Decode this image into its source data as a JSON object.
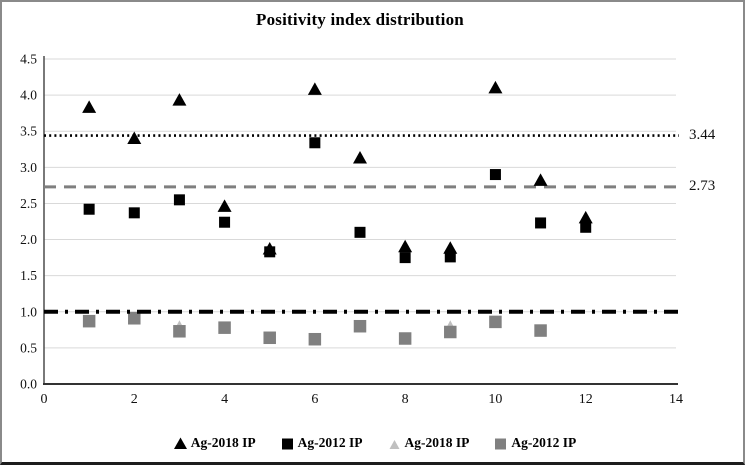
{
  "chart_data": {
    "type": "scatter",
    "title": "Positivity index distribution",
    "x_axis": {
      "min": 0,
      "max": 14,
      "tick_step": 2,
      "ticks": [
        "0",
        "2",
        "4",
        "6",
        "8",
        "10",
        "12",
        "14"
      ]
    },
    "y_axis": {
      "min": 0,
      "max": 4.5,
      "tick_step": 0.5,
      "ticks": [
        "0.0",
        "0.5",
        "1.0",
        "1.5",
        "2.0",
        "2.5",
        "3.0",
        "3.5",
        "4.0",
        "4.5"
      ]
    },
    "grid": "horizontal-only",
    "legend_position": "bottom",
    "colors": {
      "black_series": "#000000",
      "light_gray_series": "#c0c0c0",
      "gray_series": "#808080",
      "gridline": "#d9d9d9",
      "axis": "#4d4d4d",
      "dashed_line": "#7f7f7f"
    },
    "series": [
      {
        "name": "Ag-2018 IP",
        "marker": "triangle",
        "color": "#000000",
        "x": [
          1,
          2,
          3,
          4,
          5,
          6,
          7,
          8,
          9,
          10,
          11,
          12
        ],
        "y": [
          3.83,
          3.4,
          3.93,
          2.46,
          1.87,
          4.08,
          3.13,
          1.9,
          1.88,
          4.1,
          2.82,
          2.3
        ]
      },
      {
        "name": "Ag-2012 IP",
        "marker": "square",
        "color": "#000000",
        "x": [
          1,
          2,
          3,
          4,
          5,
          6,
          7,
          8,
          9,
          10,
          11,
          12
        ],
        "y": [
          2.42,
          2.37,
          2.55,
          2.24,
          1.83,
          3.34,
          2.1,
          1.75,
          1.76,
          2.9,
          2.23,
          2.17
        ]
      },
      {
        "name": "Ag-2018 IP",
        "marker": "triangle",
        "color": "#c0c0c0",
        "x": [
          3,
          9
        ],
        "y": [
          0.8,
          0.8
        ]
      },
      {
        "name": "Ag-2012 IP",
        "marker": "square",
        "color": "#808080",
        "x": [
          1,
          2,
          3,
          4,
          5,
          6,
          7,
          8,
          9,
          10,
          11
        ],
        "y": [
          0.87,
          0.91,
          0.73,
          0.78,
          0.64,
          0.62,
          0.8,
          0.63,
          0.72,
          0.86,
          0.74
        ]
      }
    ],
    "reference_lines": [
      {
        "value": 3.44,
        "label": "3.44",
        "style": "dotted",
        "color": "#000000",
        "width": 2.6
      },
      {
        "value": 2.73,
        "label": "2.73",
        "style": "dashed",
        "color": "#7f7f7f",
        "width": 3
      },
      {
        "value": 1.0,
        "label": "",
        "style": "dashdot",
        "color": "#000000",
        "width": 4
      }
    ]
  }
}
